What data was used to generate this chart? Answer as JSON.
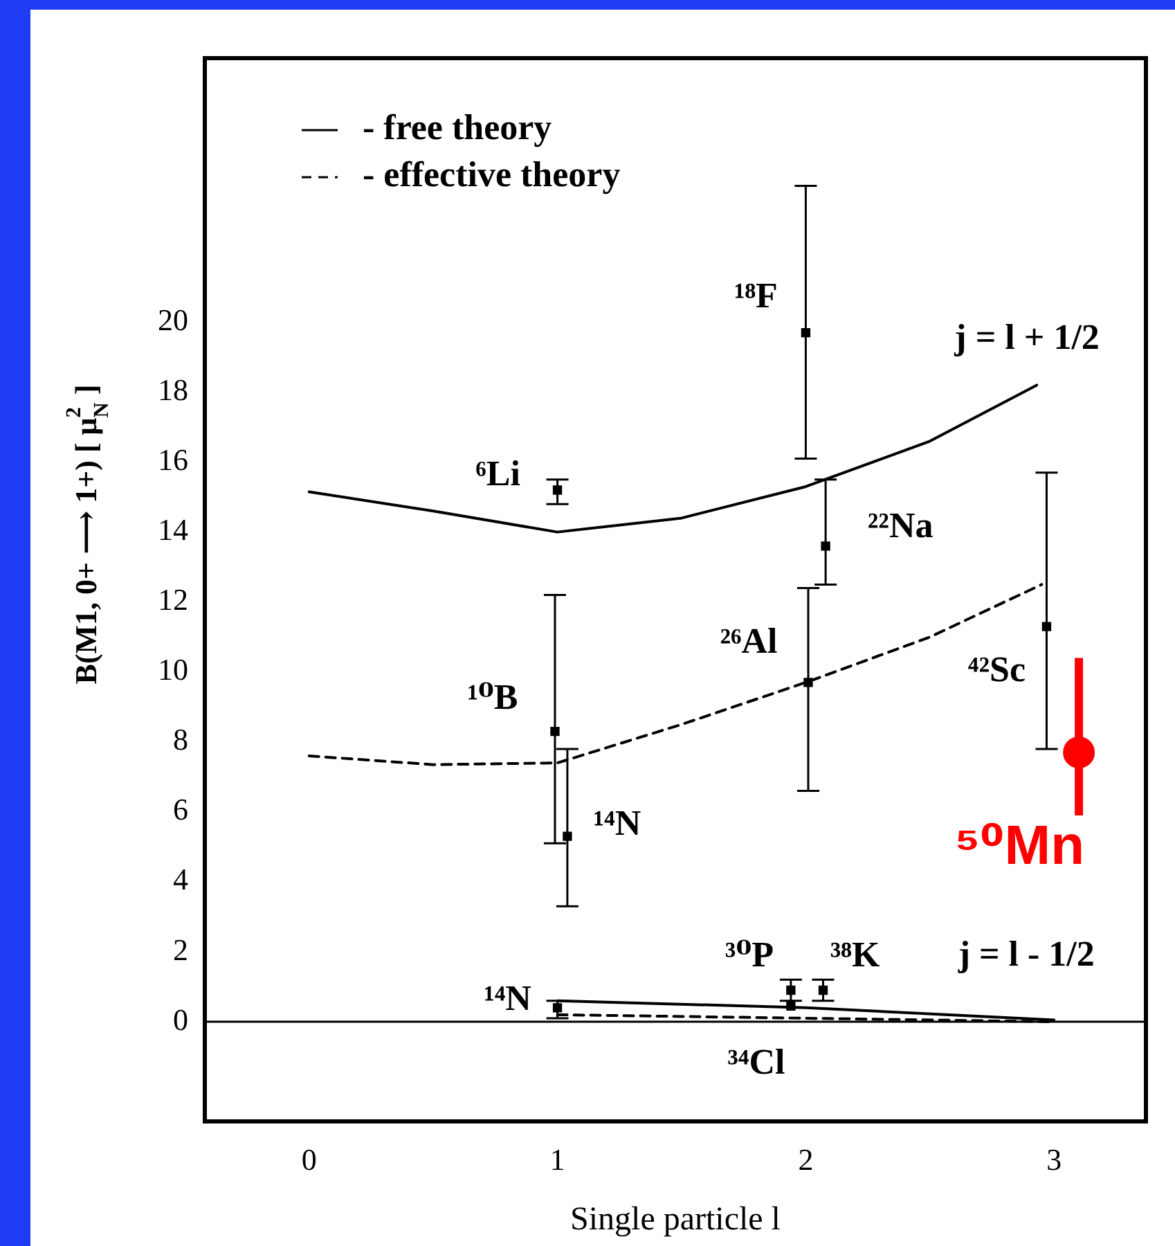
{
  "chart_data": {
    "type": "scatter",
    "xlabel": "Single particle l",
    "ylabel": "B(M1, 0+ ⟶ 1+) [ μ$_{N}$$^{2}$ ]",
    "xlim": [
      -0.42,
      3.37
    ],
    "ylim": [
      -2.85,
      27.55
    ],
    "xticks": [
      0,
      1,
      2,
      3
    ],
    "yticks": [
      0,
      2,
      4,
      6,
      8,
      10,
      12,
      14,
      16,
      18,
      20
    ],
    "grid": false,
    "legend": "top left",
    "ref_lines": [
      {
        "axis": "y",
        "value": 0,
        "color": "#000000"
      }
    ],
    "series": [
      {
        "name": "- free theory",
        "type": "line",
        "line_style": "solid",
        "marker": "none",
        "color": "#000000",
        "x": [
          0,
          0.5,
          1,
          1.5,
          2,
          2.5,
          2.93
        ],
        "values": [
          15.15,
          14.6,
          14.0,
          14.4,
          15.3,
          16.6,
          18.2
        ]
      },
      {
        "name": "- effective theory",
        "type": "line",
        "line_style": "dashed",
        "marker": "none",
        "color": "#000000",
        "x": [
          0,
          0.5,
          1,
          1.5,
          2,
          2.5,
          2.95
        ],
        "values": [
          7.6,
          7.35,
          7.4,
          8.5,
          9.7,
          11.0,
          12.5
        ]
      },
      {
        "type": "line",
        "line_style": "solid",
        "marker": "none",
        "color": "#000000",
        "x": [
          1,
          2,
          3
        ],
        "values": [
          0.6,
          0.4,
          0.05
        ]
      },
      {
        "type": "line",
        "line_style": "dashed",
        "marker": "none",
        "color": "#000000",
        "x": [
          1,
          2,
          3
        ],
        "values": [
          0.2,
          0.1,
          0
        ]
      },
      {
        "marker": "square",
        "color": "#000000",
        "x": [
          1.0,
          0.99,
          1.04,
          2.0,
          2.08,
          2.01,
          2.97,
          1.0,
          1.94,
          2.07,
          1.94
        ],
        "values": [
          15.2,
          8.3,
          5.3,
          19.7,
          13.6,
          9.7,
          11.3,
          0.4,
          0.9,
          0.9,
          0.45
        ],
        "errors": [
          [
            14.8,
            15.5
          ],
          [
            5.1,
            12.2
          ],
          [
            3.3,
            7.8
          ],
          [
            16.1,
            23.9
          ],
          [
            12.5,
            15.5
          ],
          [
            6.6,
            12.4
          ],
          [
            7.8,
            15.7
          ],
          [
            0.1,
            0.6
          ],
          [
            0.6,
            1.2
          ],
          [
            0.6,
            1.2
          ],
          null
        ]
      },
      {
        "name": "⁵⁰Mn",
        "marker": "circle",
        "color": "#ff0000",
        "x": [
          3.1
        ],
        "values": [
          7.7
        ],
        "errors": [
          [
            5.9,
            10.4
          ]
        ]
      }
    ],
    "annotations": [
      {
        "text": "⁶Li",
        "x": 1.0,
        "y": 15.2
      },
      {
        "text": "¹⁸F",
        "x": 2.0,
        "y": 19.7
      },
      {
        "text": "²²Na",
        "x": 2.08,
        "y": 13.6
      },
      {
        "text": "²⁶Al",
        "x": 2.01,
        "y": 9.7
      },
      {
        "text": "⁴²Sc",
        "x": 2.97,
        "y": 11.3
      },
      {
        "text": "¹⁰B",
        "x": 0.99,
        "y": 8.3
      },
      {
        "text": "¹⁴N",
        "x": 1.04,
        "y": 5.3
      },
      {
        "text": "¹⁴N",
        "x": 1.0,
        "y": 0.4
      },
      {
        "text": "³⁰P",
        "x": 1.94,
        "y": 0.9
      },
      {
        "text": "³⁸K",
        "x": 2.07,
        "y": 0.9
      },
      {
        "text": "³⁴Cl",
        "x": 1.94,
        "y": 0.45
      },
      {
        "text": "j = l + 1/2",
        "x": 2.93,
        "y": 18.2
      },
      {
        "text": "j = l - 1/2",
        "x": 3,
        "y": 0.05
      }
    ]
  }
}
